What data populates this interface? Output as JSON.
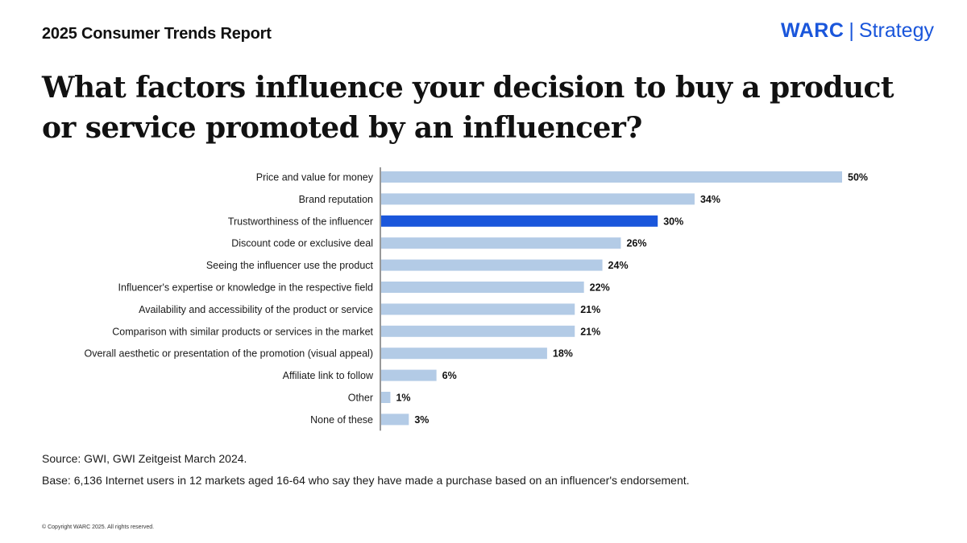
{
  "header": {
    "report_label": "2025 Consumer Trends Report",
    "brand_name": "WARC",
    "brand_separator": "|",
    "brand_section": "Strategy"
  },
  "question": "What factors influence your decision to buy a product or service promoted by an influencer?",
  "colors": {
    "brand": "#1A56DB",
    "bar_default": "#B3CBE6",
    "bar_highlight": "#1A56DB",
    "axis": "#333333"
  },
  "chart_data": {
    "type": "bar",
    "orientation": "horizontal",
    "title": "What factors influence your decision to buy a product or service promoted by an influencer?",
    "xlabel": "",
    "ylabel": "",
    "xlim": [
      0,
      50
    ],
    "grid": false,
    "value_suffix": "%",
    "highlight_category": "Trustworthiness of the influencer",
    "categories": [
      "Price and value for money",
      "Brand reputation",
      "Trustworthiness of the influencer",
      "Discount code or exclusive deal",
      "Seeing the influencer use the product",
      "Influencer's expertise or knowledge in the respective field",
      "Availability and accessibility of the product or service",
      "Comparison with similar products or services in the market",
      "Overall aesthetic or presentation of the promotion (visual appeal)",
      "Affiliate link to follow",
      "Other",
      "None of these"
    ],
    "values": [
      50,
      34,
      30,
      26,
      24,
      22,
      21,
      21,
      18,
      6,
      1,
      3
    ]
  },
  "footer": {
    "source": "Source: GWI, GWI Zeitgeist March 2024.",
    "base": "Base: 6,136 Internet users in 12 markets aged 16-64 who say they have made a purchase based on an influencer's endorsement.",
    "copyright": "© Copyright WARC 2025. All rights reserved."
  }
}
